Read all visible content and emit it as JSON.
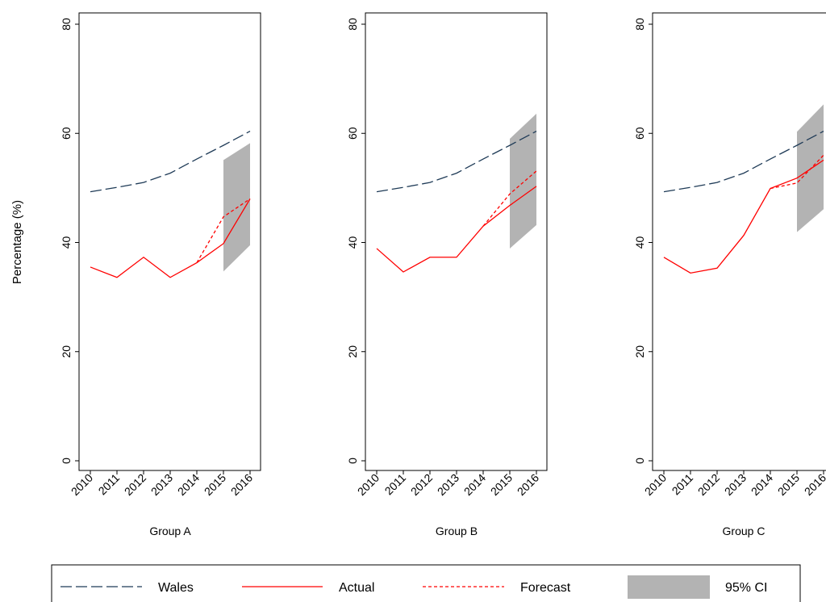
{
  "chart_data": {
    "type": "line",
    "ylabel": "Percentage (%)",
    "ylim": [
      0,
      80
    ],
    "yticks": [
      "0",
      "20",
      "40",
      "60",
      "80"
    ],
    "categories": [
      "2010",
      "2011",
      "2012",
      "2013",
      "2014",
      "2015",
      "2016"
    ],
    "panels": [
      {
        "xlabel": "Group A",
        "series": [
          {
            "name": "Wales",
            "values": [
              49.3,
              50.1,
              51.0,
              52.7,
              55.3,
              57.8,
              60.4
            ]
          },
          {
            "name": "Actual",
            "values": [
              35.5,
              33.6,
              37.3,
              33.6,
              36.3,
              39.8,
              48.0
            ]
          },
          {
            "name": "Forecast",
            "x": [
              "2014",
              "2015",
              "2016"
            ],
            "values": [
              36.3,
              44.7,
              48.0
            ]
          }
        ],
        "ci": {
          "name": "95% CI",
          "x": [
            "2015",
            "2016"
          ],
          "lower": [
            34.7,
            39.5
          ],
          "upper": [
            55.1,
            58.2
          ]
        }
      },
      {
        "xlabel": "Group B",
        "series": [
          {
            "name": "Wales",
            "values": [
              49.3,
              50.1,
              51.0,
              52.7,
              55.3,
              57.8,
              60.4
            ]
          },
          {
            "name": "Actual",
            "values": [
              38.9,
              34.6,
              37.3,
              37.3,
              43.0,
              46.8,
              50.3
            ]
          },
          {
            "name": "Forecast",
            "x": [
              "2014",
              "2015",
              "2016"
            ],
            "values": [
              43.0,
              48.9,
              53.1
            ]
          }
        ],
        "ci": {
          "name": "95% CI",
          "x": [
            "2015",
            "2016"
          ],
          "lower": [
            38.9,
            43.2
          ],
          "upper": [
            59.0,
            63.6
          ]
        }
      },
      {
        "xlabel": "Group C",
        "series": [
          {
            "name": "Wales",
            "values": [
              49.3,
              50.1,
              51.0,
              52.7,
              55.3,
              57.8,
              60.4
            ]
          },
          {
            "name": "Actual",
            "values": [
              37.3,
              34.4,
              35.3,
              41.3,
              49.9,
              51.8,
              55.1
            ]
          },
          {
            "name": "Forecast",
            "x": [
              "2014",
              "2015",
              "2016"
            ],
            "values": [
              49.9,
              50.9,
              56.0
            ]
          }
        ],
        "ci": {
          "name": "95% CI",
          "x": [
            "2015",
            "2016"
          ],
          "lower": [
            41.9,
            46.1
          ],
          "upper": [
            60.3,
            65.3
          ]
        }
      }
    ],
    "legend": {
      "position": "bottom",
      "items": [
        "Wales",
        "Actual",
        "Forecast",
        "95% CI"
      ]
    },
    "colors": {
      "wales": "#1f3b57",
      "actual": "#ff0000",
      "forecast": "#ff0000",
      "ci": "#b3b3b3"
    }
  }
}
